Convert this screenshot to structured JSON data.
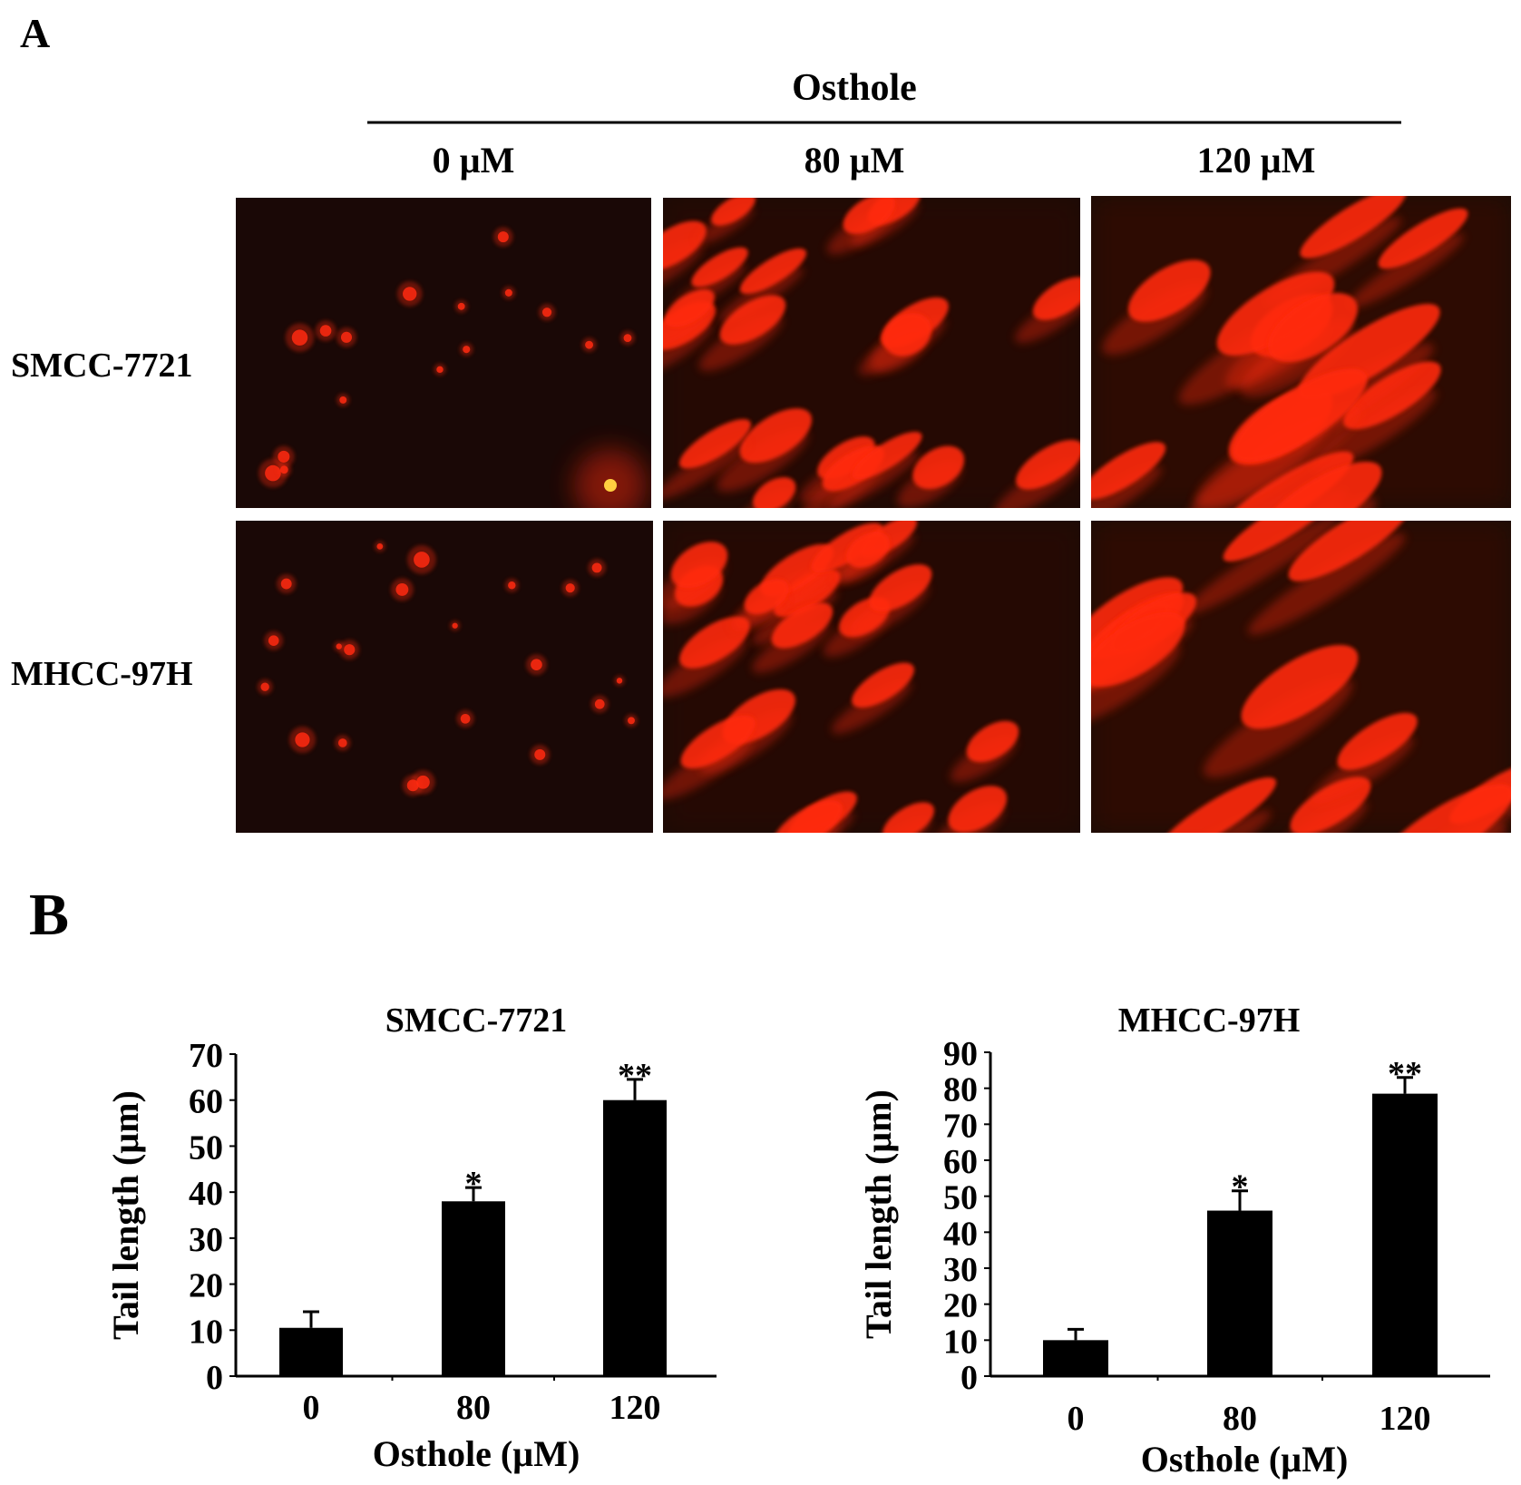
{
  "panel_a": {
    "label": "A",
    "treatment_label": "Osthole",
    "concentrations": [
      "0 µM",
      "80 µM",
      "120 µM"
    ],
    "cell_lines": [
      "SMCC-7721",
      "MHCC-97H"
    ],
    "colors": {
      "background": "#1a0806",
      "signal": "#ff2a10",
      "bright": "#ffd040"
    }
  },
  "panel_b": {
    "label": "B"
  },
  "chart_data": [
    {
      "type": "bar",
      "title": "SMCC-7721",
      "categories": [
        "0",
        "80",
        "120"
      ],
      "values": [
        10.5,
        38,
        60
      ],
      "errors": [
        3.5,
        3,
        4.5
      ],
      "annotations": [
        "",
        "*",
        "**"
      ],
      "xlabel": "Osthole (µM)",
      "ylabel": "Tail length (µm)",
      "ylim": [
        0,
        70
      ],
      "yticks": [
        0,
        10,
        20,
        30,
        40,
        50,
        60,
        70
      ],
      "bar_color": "#000000",
      "grid": false
    },
    {
      "type": "bar",
      "title": "MHCC-97H",
      "categories": [
        "0",
        "80",
        "120"
      ],
      "values": [
        10,
        46,
        78.5
      ],
      "errors": [
        3,
        5.5,
        4.5
      ],
      "annotations": [
        "",
        "*",
        "**"
      ],
      "xlabel": "Osthole (µM)",
      "ylabel": "Tail length (µm)",
      "ylim": [
        0,
        90
      ],
      "yticks": [
        0,
        10,
        20,
        30,
        40,
        50,
        60,
        70,
        80,
        90
      ],
      "bar_color": "#000000",
      "grid": false
    }
  ]
}
